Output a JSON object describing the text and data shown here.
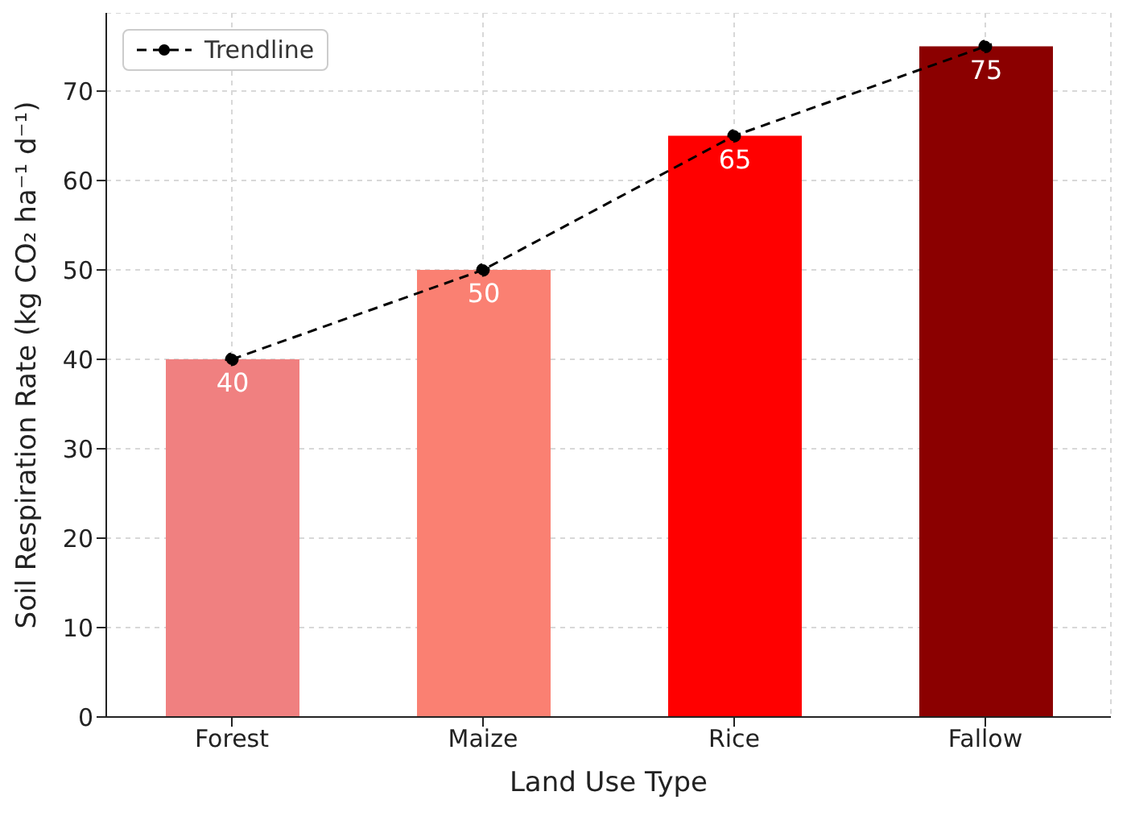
{
  "chart_data": {
    "type": "bar",
    "xlabel": "Land Use Type",
    "ylabel": "Soil Respiration Rate (kg CO₂ ha⁻¹ d⁻¹)",
    "categories": [
      "Forest",
      "Maize",
      "Rice",
      "Fallow"
    ],
    "ylim": [
      0,
      78.75
    ],
    "yticks": [
      0,
      10,
      20,
      30,
      40,
      50,
      60,
      70
    ],
    "grid": true,
    "legend": "top left",
    "series": [
      {
        "colors": [
          "#f08080",
          "#fa8072",
          "#ff0000",
          "#8b0000"
        ],
        "values": [
          40,
          50,
          65,
          75
        ],
        "value_labels": [
          "40",
          "50",
          "65",
          "75"
        ]
      },
      {
        "type": "line",
        "name": "Trendline",
        "color": "#000000",
        "values": [
          40,
          50,
          65,
          75
        ],
        "marker": "circle",
        "line_style": "dashed"
      }
    ]
  }
}
